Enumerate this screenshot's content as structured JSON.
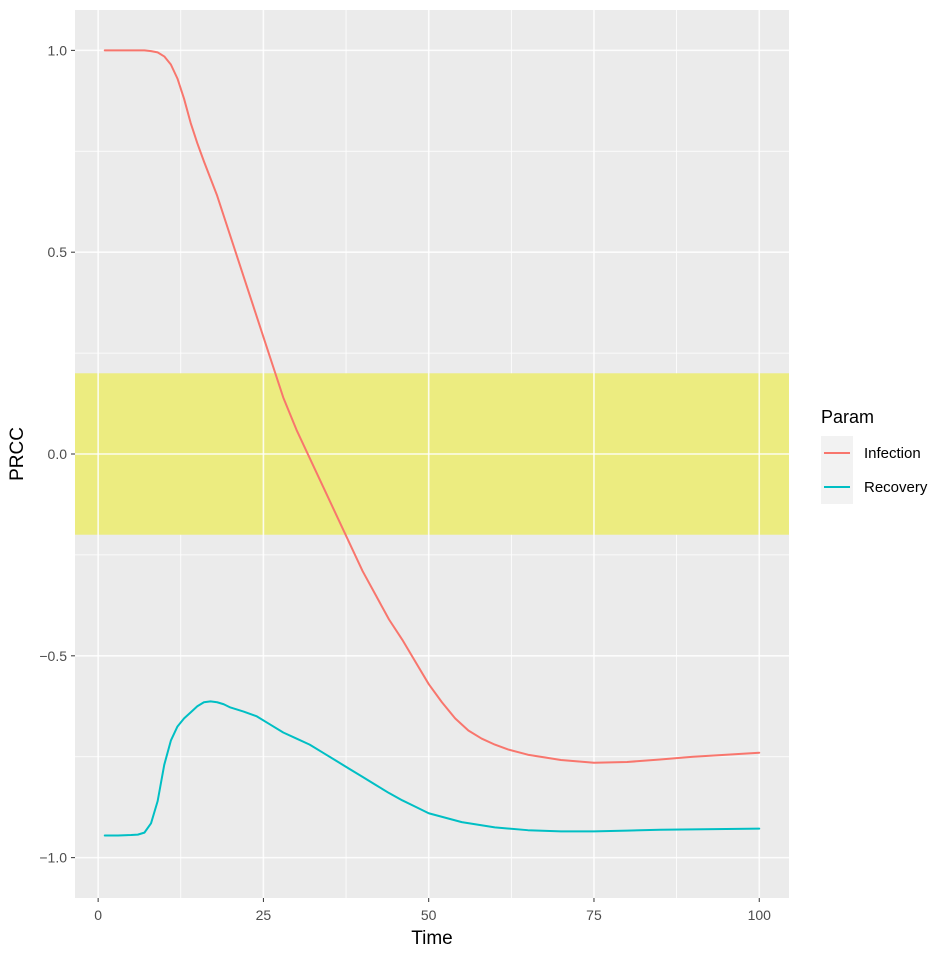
{
  "chart_data": {
    "type": "line",
    "xlabel": "Time",
    "ylabel": "PRCC",
    "xlim": [
      -3.5,
      104.5
    ],
    "ylim": [
      -1.1,
      1.1
    ],
    "x_ticks": [
      0,
      25,
      50,
      75,
      100
    ],
    "x_tick_labels": [
      "0",
      "25",
      "50",
      "75",
      "100"
    ],
    "y_ticks": [
      -1.0,
      -0.5,
      0.0,
      0.5,
      1.0
    ],
    "y_tick_labels": [
      "−1.0",
      "−0.5",
      "0.0",
      "0.5",
      "1.0"
    ],
    "grid": true,
    "band": {
      "ymin": -0.2,
      "ymax": 0.2,
      "color": "#ecec80"
    },
    "legend": {
      "title": "Param",
      "position": "right"
    },
    "series": [
      {
        "name": "Infection",
        "color": "#F8766D",
        "x": [
          1,
          4,
          7,
          8,
          9,
          10,
          11,
          12,
          13,
          14,
          15,
          16,
          18,
          20,
          22,
          24,
          26,
          28,
          30,
          32,
          34,
          36,
          38,
          40,
          42,
          44,
          46,
          48,
          50,
          52,
          54,
          56,
          58,
          60,
          62,
          65,
          70,
          75,
          80,
          85,
          90,
          95,
          100
        ],
        "y": [
          1.0,
          1.0,
          1.0,
          0.998,
          0.995,
          0.985,
          0.965,
          0.93,
          0.88,
          0.82,
          0.77,
          0.725,
          0.64,
          0.54,
          0.44,
          0.34,
          0.24,
          0.14,
          0.06,
          -0.01,
          -0.08,
          -0.15,
          -0.22,
          -0.29,
          -0.35,
          -0.41,
          -0.46,
          -0.515,
          -0.57,
          -0.615,
          -0.655,
          -0.685,
          -0.705,
          -0.72,
          -0.732,
          -0.745,
          -0.758,
          -0.765,
          -0.763,
          -0.757,
          -0.75,
          -0.745,
          -0.74
        ]
      },
      {
        "name": "Recovery",
        "color": "#00BFC4",
        "x": [
          1,
          3,
          5,
          6,
          7,
          8,
          9,
          10,
          11,
          12,
          13,
          14,
          15,
          16,
          17,
          18,
          19,
          20,
          22,
          24,
          26,
          28,
          30,
          32,
          34,
          36,
          38,
          40,
          42,
          44,
          46,
          48,
          50,
          55,
          60,
          65,
          70,
          75,
          80,
          85,
          90,
          95,
          100
        ],
        "y": [
          -0.945,
          -0.945,
          -0.944,
          -0.943,
          -0.938,
          -0.915,
          -0.86,
          -0.77,
          -0.71,
          -0.675,
          -0.655,
          -0.64,
          -0.625,
          -0.615,
          -0.613,
          -0.615,
          -0.62,
          -0.628,
          -0.638,
          -0.65,
          -0.67,
          -0.69,
          -0.705,
          -0.72,
          -0.74,
          -0.76,
          -0.78,
          -0.8,
          -0.82,
          -0.84,
          -0.858,
          -0.874,
          -0.89,
          -0.912,
          -0.925,
          -0.932,
          -0.935,
          -0.935,
          -0.933,
          -0.931,
          -0.93,
          -0.929,
          -0.928
        ]
      }
    ]
  }
}
